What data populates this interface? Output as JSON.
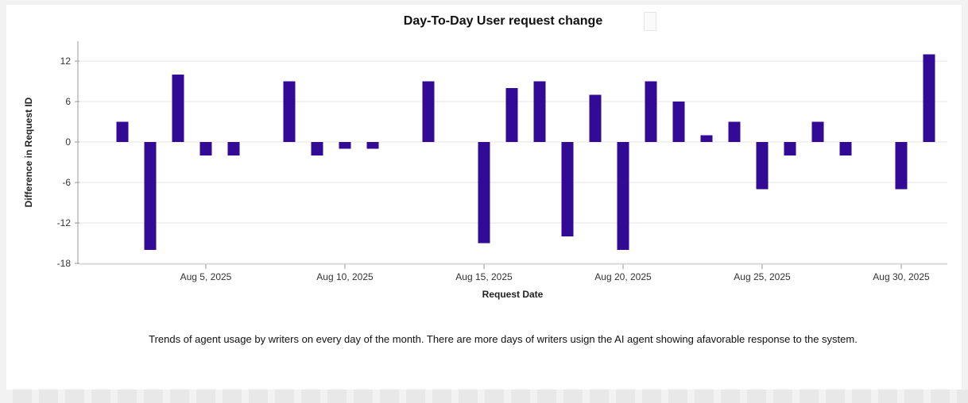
{
  "chart_data": {
    "type": "bar",
    "title": "Day-To-Day User request change",
    "xlabel": "Request Date",
    "ylabel": "Difference in Request ID",
    "ylim": [
      -18,
      15
    ],
    "yticks": [
      12,
      6,
      0,
      -6,
      -12,
      -18
    ],
    "xtick_labels": [
      {
        "day": 5,
        "label": "Aug 5, 2025"
      },
      {
        "day": 10,
        "label": "Aug 10, 2025"
      },
      {
        "day": 15,
        "label": "Aug 15, 2025"
      },
      {
        "day": 20,
        "label": "Aug 20, 2025"
      },
      {
        "day": 25,
        "label": "Aug 25, 2025"
      },
      {
        "day": 30,
        "label": "Aug 30, 2025"
      }
    ],
    "days": [
      2,
      3,
      4,
      5,
      6,
      7,
      8,
      9,
      10,
      11,
      12,
      13,
      14,
      15,
      16,
      17,
      18,
      19,
      20,
      21,
      22,
      23,
      24,
      25,
      26,
      27,
      28,
      29,
      30,
      31
    ],
    "values": [
      3,
      -16,
      10,
      -2,
      -2,
      0,
      9,
      -2,
      -1,
      -1,
      0,
      9,
      0,
      -15,
      8,
      9,
      -14,
      7,
      -16,
      9,
      6,
      1,
      3,
      -7,
      -2,
      3,
      -2,
      0,
      -7,
      13
    ],
    "bar_color": "#320a96",
    "grid": "horizontal"
  },
  "caption": "Trends of agent usage by writers on every day of the month. There are more days of writers usign the AI agent showing afavorable response to the system."
}
